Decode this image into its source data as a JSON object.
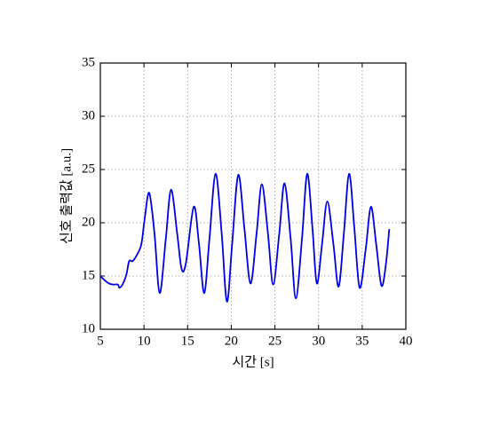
{
  "chart_data": {
    "type": "line",
    "x_label": "시간 [s]",
    "y_label": "신호 출력값 [a.u.]",
    "x": [
      5,
      5.5,
      6,
      6.5,
      7,
      7.2,
      7.6,
      8,
      8.3,
      8.7,
      9.2,
      9.7,
      10.1,
      10.6,
      11.2,
      11.8,
      12.5,
      13.1,
      13.8,
      14.3,
      14.8,
      15.7,
      16.3,
      16.9,
      17.5,
      18.2,
      18.9,
      19.5,
      20.1,
      20.8,
      21.5,
      22.2,
      22.9,
      23.5,
      24.2,
      24.8,
      25.5,
      26.1,
      26.8,
      27.4,
      28.1,
      28.7,
      29.3,
      29.8,
      30.4,
      31.0,
      31.7,
      32.3,
      32.9,
      33.5,
      34.1,
      34.7,
      35.4,
      36.0,
      36.6,
      37.2,
      37.7,
      38.1
    ],
    "series": [
      {
        "color": "#0000e6",
        "values": [
          15.0,
          14.6,
          14.3,
          14.2,
          14.2,
          13.9,
          14.3,
          15.2,
          16.4,
          16.4,
          17.0,
          18.0,
          20.5,
          22.8,
          19.0,
          13.4,
          18.5,
          23.1,
          19.0,
          15.7,
          16.2,
          21.5,
          18.0,
          13.4,
          18.5,
          24.6,
          19.0,
          12.6,
          18.0,
          24.5,
          19.5,
          14.3,
          19.0,
          23.6,
          19.0,
          14.2,
          19.0,
          23.7,
          18.5,
          12.9,
          18.5,
          24.6,
          19.5,
          14.3,
          18.0,
          22.0,
          18.0,
          14.0,
          19.0,
          24.6,
          19.5,
          13.9,
          17.5,
          21.5,
          18.0,
          14.1,
          16.0,
          19.4
        ]
      }
    ],
    "xlim": [
      5,
      40
    ],
    "xticks": [
      5,
      10,
      15,
      20,
      25,
      30,
      35,
      40
    ],
    "ylim": [
      10,
      35
    ],
    "yticks": [
      10,
      15,
      20,
      25,
      30,
      35
    ],
    "grid": true
  }
}
